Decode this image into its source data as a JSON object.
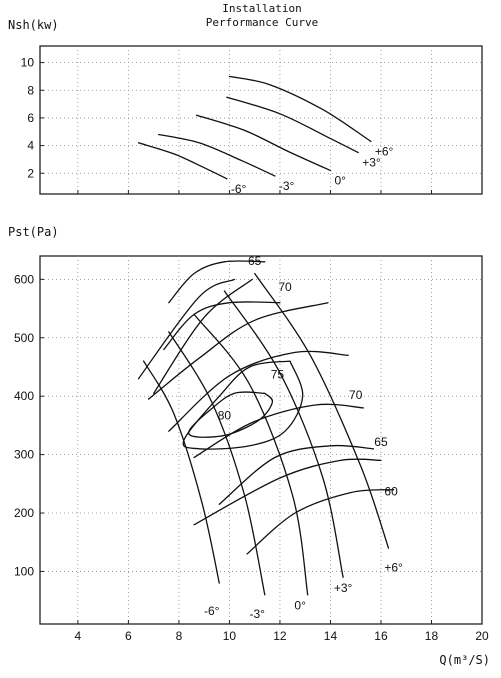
{
  "title_line1": "Installation",
  "title_line2": "Performance Curve",
  "chart_data": [
    {
      "type": "line",
      "ylabel": "Nsh(kw)",
      "yticks": [
        2,
        4,
        6,
        8,
        10
      ],
      "ylim": [
        0.5,
        11.2
      ],
      "xlim": [
        2.5,
        20
      ],
      "grid": true,
      "series": [
        {
          "name": "-6°",
          "points": [
            [
              6.4,
              4.2
            ],
            [
              7.8,
              3.4
            ],
            [
              9.0,
              2.4
            ],
            [
              9.9,
              1.6
            ]
          ]
        },
        {
          "name": "-3°",
          "points": [
            [
              7.2,
              4.8
            ],
            [
              8.8,
              4.2
            ],
            [
              10.5,
              2.9
            ],
            [
              11.8,
              1.8
            ]
          ]
        },
        {
          "name": "0°",
          "points": [
            [
              8.7,
              6.2
            ],
            [
              10.6,
              5.1
            ],
            [
              12.3,
              3.6
            ],
            [
              14.0,
              2.2
            ]
          ]
        },
        {
          "name": "+3°",
          "points": [
            [
              9.9,
              7.5
            ],
            [
              12.0,
              6.3
            ],
            [
              13.9,
              4.6
            ],
            [
              15.1,
              3.5
            ]
          ]
        },
        {
          "name": "+6°",
          "points": [
            [
              10.0,
              9.0
            ],
            [
              11.6,
              8.4
            ],
            [
              13.7,
              6.6
            ],
            [
              15.6,
              4.3
            ]
          ]
        }
      ]
    },
    {
      "type": "line",
      "xlabel": "Q(m³/S)",
      "ylabel": "Pst(Pa)",
      "xticks": [
        4,
        6,
        8,
        10,
        12,
        14,
        16,
        18,
        20
      ],
      "yticks": [
        100,
        200,
        300,
        400,
        500,
        600
      ],
      "xlim": [
        2.5,
        20
      ],
      "ylim": [
        10,
        640
      ],
      "grid": true,
      "blade_angle_curves": [
        {
          "name": "-6°",
          "points": [
            [
              6.6,
              460
            ],
            [
              7.8,
              370
            ],
            [
              8.9,
              220
            ],
            [
              9.6,
              80
            ]
          ]
        },
        {
          "name": "-3°",
          "points": [
            [
              7.6,
              510
            ],
            [
              9.3,
              390
            ],
            [
              10.6,
              230
            ],
            [
              11.4,
              60
            ]
          ]
        },
        {
          "name": "0°",
          "points": [
            [
              8.6,
              540
            ],
            [
              10.8,
              420
            ],
            [
              12.5,
              230
            ],
            [
              13.1,
              60
            ]
          ]
        },
        {
          "name": "+3°",
          "points": [
            [
              9.8,
              580
            ],
            [
              12.0,
              440
            ],
            [
              13.7,
              260
            ],
            [
              14.5,
              90
            ]
          ]
        },
        {
          "name": "+6°",
          "points": [
            [
              11.0,
              610
            ],
            [
              13.2,
              470
            ],
            [
              15.2,
              280
            ],
            [
              16.3,
              140
            ]
          ]
        }
      ],
      "system_curves": [
        {
          "points": [
            [
              7.0,
              405
            ],
            [
              9.0,
              535
            ],
            [
              10.9,
              600
            ]
          ]
        },
        {
          "points": [
            [
              6.4,
              430
            ],
            [
              8.8,
              570
            ],
            [
              10.2,
              600
            ]
          ]
        },
        {
          "points": [
            [
              6.8,
              395
            ],
            [
              8.8,
              465
            ],
            [
              11.0,
              530
            ],
            [
              13.9,
              560
            ]
          ]
        },
        {
          "points": [
            [
              7.6,
              340
            ],
            [
              10.0,
              435
            ],
            [
              12.6,
              475
            ],
            [
              14.7,
              470
            ]
          ]
        },
        {
          "points": [
            [
              8.6,
              295
            ],
            [
              10.9,
              355
            ],
            [
              13.4,
              385
            ],
            [
              15.3,
              380
            ]
          ]
        },
        {
          "points": [
            [
              9.6,
              215
            ],
            [
              11.8,
              295
            ],
            [
              14.0,
              315
            ],
            [
              15.7,
              310
            ]
          ]
        },
        {
          "points": [
            [
              10.7,
              130
            ],
            [
              12.6,
              200
            ],
            [
              14.8,
              235
            ],
            [
              16.5,
              240
            ]
          ]
        },
        {
          "points": [
            [
              8.6,
              180
            ],
            [
              12.0,
              260
            ],
            [
              14.4,
              290
            ],
            [
              16.0,
              290
            ]
          ]
        }
      ],
      "efficiency_contours": [
        {
          "name": "80",
          "points": [
            [
              11.4,
              405
            ],
            [
              10.2,
              405
            ],
            [
              9.2,
              375
            ],
            [
              8.4,
              340
            ],
            [
              8.8,
              330
            ],
            [
              10.0,
              335
            ],
            [
              11.2,
              360
            ],
            [
              11.7,
              390
            ],
            [
              11.4,
              405
            ]
          ]
        },
        {
          "name": "75",
          "points": [
            [
              12.4,
              460
            ],
            [
              10.8,
              450
            ],
            [
              9.6,
              400
            ],
            [
              8.2,
              325
            ],
            [
              8.8,
              310
            ],
            [
              10.8,
              315
            ],
            [
              12.2,
              340
            ],
            [
              12.9,
              400
            ],
            [
              12.4,
              460
            ]
          ]
        },
        {
          "name": "70",
          "points": [
            [
              12.0,
              560
            ],
            [
              10.0,
              560
            ],
            [
              8.6,
              540
            ],
            [
              7.4,
              480
            ]
          ]
        },
        {
          "name": "65",
          "points": [
            [
              11.4,
              630
            ],
            [
              9.8,
              630
            ],
            [
              8.6,
              610
            ],
            [
              7.6,
              560
            ]
          ]
        }
      ],
      "annotations": [
        {
          "text": "65",
          "x": 11.0,
          "y": 625
        },
        {
          "text": "70",
          "x": 12.2,
          "y": 580
        },
        {
          "text": "75",
          "x": 11.9,
          "y": 430
        },
        {
          "text": "80",
          "x": 9.8,
          "y": 360
        },
        {
          "text": "70",
          "x": 15.0,
          "y": 395
        },
        {
          "text": "65",
          "x": 16.0,
          "y": 315
        },
        {
          "text": "60",
          "x": 16.4,
          "y": 230
        },
        {
          "text": "-6°",
          "x": 9.3,
          "y": 25
        },
        {
          "text": "-3°",
          "x": 11.1,
          "y": 20
        },
        {
          "text": "0°",
          "x": 12.8,
          "y": 35
        },
        {
          "text": "+3°",
          "x": 14.5,
          "y": 65
        },
        {
          "text": "+6°",
          "x": 16.5,
          "y": 100
        }
      ]
    }
  ]
}
